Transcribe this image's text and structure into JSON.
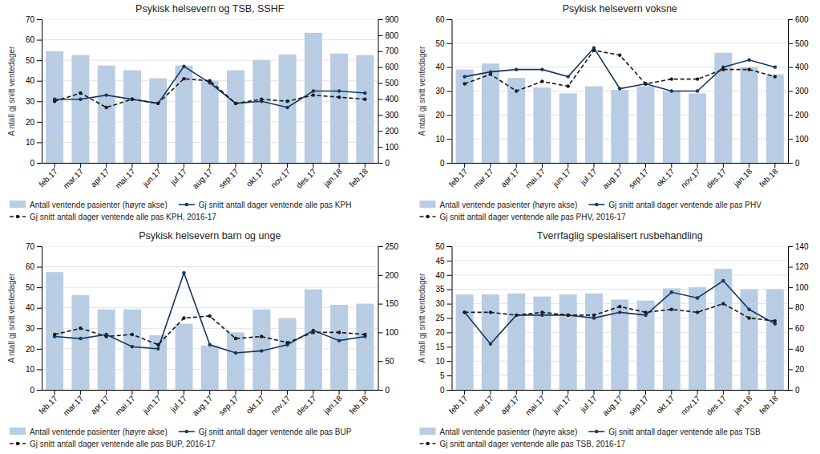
{
  "chart_data": [
    {
      "type": "bar",
      "title": "Psykisk helsevern og TSB, SSHF",
      "categories": [
        "feb.17",
        "mar.17",
        "apr.17",
        "mai.17",
        "jun.17",
        "jul.17",
        "aug.17",
        "sep.17",
        "okt.17",
        "nov.17",
        "des.17",
        "jan.18",
        "feb.18"
      ],
      "ylabel": "A ntall gj snitt ventedager",
      "ylim": [
        0,
        70
      ],
      "yticks": [
        0,
        10,
        20,
        30,
        40,
        50,
        60,
        70
      ],
      "y2lim": [
        0,
        900
      ],
      "y2ticks": [
        0,
        100,
        200,
        300,
        400,
        500,
        600,
        700,
        800,
        900
      ],
      "grid": true,
      "series": [
        {
          "name": "Antall ventende pasienter (høyre akse)",
          "type": "bar",
          "axis": "y2",
          "color": "#b8cce4",
          "values": [
            700,
            675,
            610,
            580,
            530,
            610,
            515,
            580,
            645,
            680,
            815,
            685,
            675
          ]
        },
        {
          "name": "Gj snitt antall dager ventende alle pas KPH",
          "type": "line",
          "color": "#17375e",
          "marker": "circle",
          "line_style": "solid",
          "values": [
            31,
            31,
            33,
            31,
            29,
            47,
            39,
            29,
            30,
            27,
            35,
            35,
            34
          ]
        },
        {
          "name": "Gj snitt antall dager ventende alle pas KPH, 2016-17",
          "type": "line",
          "color": "#1a1a1a",
          "marker": "circle",
          "line_style": "dashed",
          "values": [
            30,
            34,
            27,
            31,
            29,
            41,
            40,
            29,
            31,
            30,
            33,
            32,
            31
          ]
        }
      ]
    },
    {
      "type": "bar",
      "title": "Psykisk helsevern voksne",
      "categories": [
        "feb.17",
        "mar.17",
        "apr.17",
        "mai.17",
        "jun.17",
        "jul.17",
        "aug.17",
        "sep.17",
        "okt.17",
        "nov.17",
        "des.17",
        "jan.18",
        "feb.18"
      ],
      "ylabel": "A ntall gj snitt ventedager",
      "ylim": [
        0,
        60
      ],
      "yticks": [
        0,
        10,
        20,
        30,
        40,
        50,
        60
      ],
      "y2lim": [
        0,
        600
      ],
      "y2ticks": [
        0,
        100,
        200,
        300,
        400,
        500,
        600
      ],
      "grid": true,
      "series": [
        {
          "name": "Antall ventende pasienter (høyre akse)",
          "type": "bar",
          "axis": "y2",
          "color": "#b8cce4",
          "values": [
            390,
            415,
            355,
            315,
            290,
            320,
            305,
            320,
            300,
            290,
            460,
            400,
            370
          ]
        },
        {
          "name": "Gj snitt antall dager ventende alle pas PHV",
          "type": "line",
          "color": "#17375e",
          "marker": "circle",
          "line_style": "solid",
          "values": [
            36,
            38,
            39,
            39,
            36,
            48,
            31,
            33,
            30,
            30,
            40,
            43,
            40
          ]
        },
        {
          "name": "Gj snitt antall dager ventende alle pas PHV, 2016-17",
          "type": "line",
          "color": "#1a1a1a",
          "marker": "circle",
          "line_style": "dashed",
          "values": [
            33,
            37,
            30,
            34,
            32,
            47,
            45,
            33,
            35,
            35,
            39,
            39,
            36
          ]
        }
      ]
    },
    {
      "type": "bar",
      "title": "Psykisk helsevern barn og unge",
      "categories": [
        "feb.17",
        "mar.17",
        "apr.17",
        "mai.17",
        "jun.17",
        "jul.17",
        "aug.17",
        "sep.17",
        "okt.17",
        "nov.17",
        "des.17",
        "jan.18",
        "feb.18"
      ],
      "ylabel": "A ntall gj snitt ventedager",
      "ylim": [
        0,
        70
      ],
      "yticks": [
        0,
        10,
        20,
        30,
        40,
        50,
        60,
        70
      ],
      "y2lim": [
        0,
        250
      ],
      "y2ticks": [
        0,
        50,
        100,
        150,
        200,
        250
      ],
      "grid": true,
      "series": [
        {
          "name": "Antall ventende pasienter (høyre akse)",
          "type": "bar",
          "axis": "y2",
          "color": "#b8cce4",
          "values": [
            205,
            165,
            140,
            140,
            95,
            115,
            77,
            100,
            140,
            125,
            175,
            148,
            150
          ]
        },
        {
          "name": "Gj snitt antall dager ventende alle pas BUP",
          "type": "line",
          "color": "#17375e",
          "marker": "circle",
          "line_style": "solid",
          "values": [
            26,
            25,
            27,
            21,
            20,
            57,
            22,
            18,
            19,
            22,
            29,
            24,
            26
          ]
        },
        {
          "name": "Gj snitt antall dager ventende alle pas BUP, 2016-17",
          "type": "line",
          "color": "#1a1a1a",
          "marker": "circle",
          "line_style": "dashed",
          "values": [
            27,
            30,
            26,
            27,
            22,
            35,
            36,
            25,
            26,
            23,
            28,
            28,
            27
          ]
        }
      ]
    },
    {
      "type": "bar",
      "title": "Tverrfaglig spesialisert rusbehandling",
      "categories": [
        "feb.17",
        "mar.17",
        "apr.17",
        "mai.17",
        "jun.17",
        "jul.17",
        "aug.17",
        "sep.17",
        "okt.17",
        "nov.17",
        "des.17",
        "jan.18",
        "feb.18"
      ],
      "ylabel": "A ntall gj snitt ventedager",
      "ylim": [
        0,
        50
      ],
      "yticks": [
        0,
        5,
        10,
        15,
        20,
        25,
        30,
        35,
        40,
        45,
        50
      ],
      "y2lim": [
        0,
        140
      ],
      "y2ticks": [
        0,
        20,
        40,
        60,
        80,
        100,
        120,
        140
      ],
      "grid": true,
      "series": [
        {
          "name": "Antall ventende pasienter (høyre akse)",
          "type": "bar",
          "axis": "y2",
          "color": "#b8cce4",
          "values": [
            93,
            93,
            94,
            91,
            93,
            94,
            88,
            87,
            99,
            100,
            118,
            98,
            98
          ]
        },
        {
          "name": "Gj snitt antall dager ventende alle pas TSB",
          "type": "line",
          "color": "#17375e",
          "marker": "circle",
          "line_style": "solid",
          "values": [
            27,
            16,
            26,
            26,
            26,
            25,
            27,
            26,
            34,
            32,
            38,
            28,
            23
          ]
        },
        {
          "name": "Gj snitt antall dager ventende alle pas TSB, 2016-17",
          "type": "line",
          "color": "#1a1a1a",
          "marker": "circle",
          "line_style": "dashed",
          "values": [
            27,
            27,
            26,
            27,
            26,
            26,
            29,
            27,
            28,
            27,
            30,
            25,
            24
          ]
        }
      ]
    }
  ]
}
